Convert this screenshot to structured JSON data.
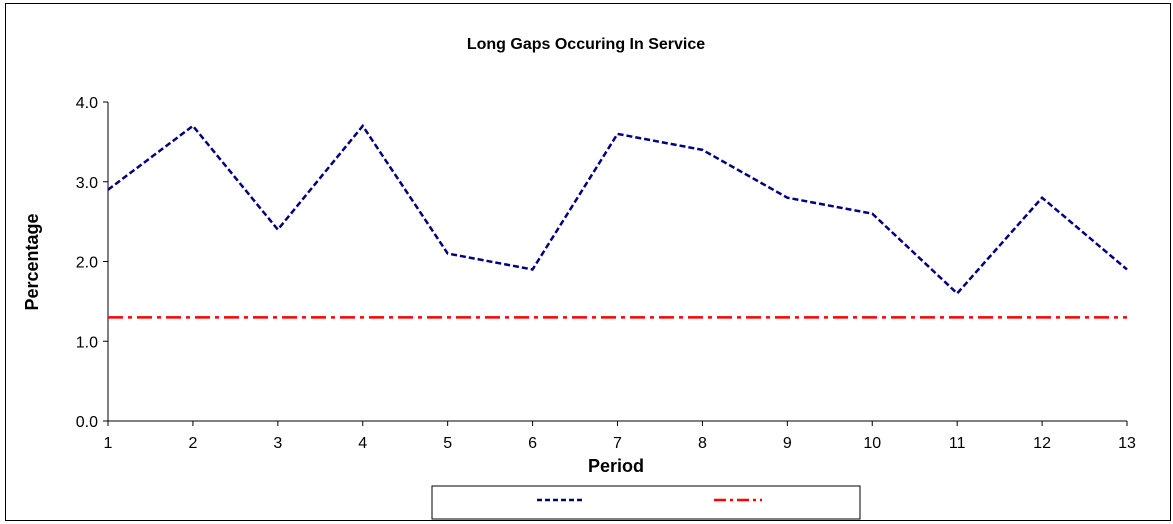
{
  "chart_data": {
    "type": "line",
    "title": "Long Gaps Occuring In Service",
    "xlabel": "Period",
    "ylabel": "Percentage",
    "x": [
      1,
      2,
      3,
      4,
      5,
      6,
      7,
      8,
      9,
      10,
      11,
      12,
      13
    ],
    "ylim": [
      0,
      4
    ],
    "yticks": [
      "0.0",
      "1.0",
      "2.0",
      "3.0",
      "4.0"
    ],
    "grid": false,
    "legend_position": "bottom",
    "series": [
      {
        "values": [
          2.9,
          3.7,
          2.4,
          3.7,
          2.1,
          1.9,
          3.6,
          3.4,
          2.8,
          2.6,
          1.6,
          2.8,
          1.9
        ],
        "color": "#000080",
        "style": "dashed"
      },
      {
        "values": [
          1.3,
          1.3,
          1.3,
          1.3,
          1.3,
          1.3,
          1.3,
          1.3,
          1.3,
          1.3,
          1.3,
          1.3,
          1.3
        ],
        "color": "#ff0000",
        "style": "dash-dot"
      }
    ]
  }
}
